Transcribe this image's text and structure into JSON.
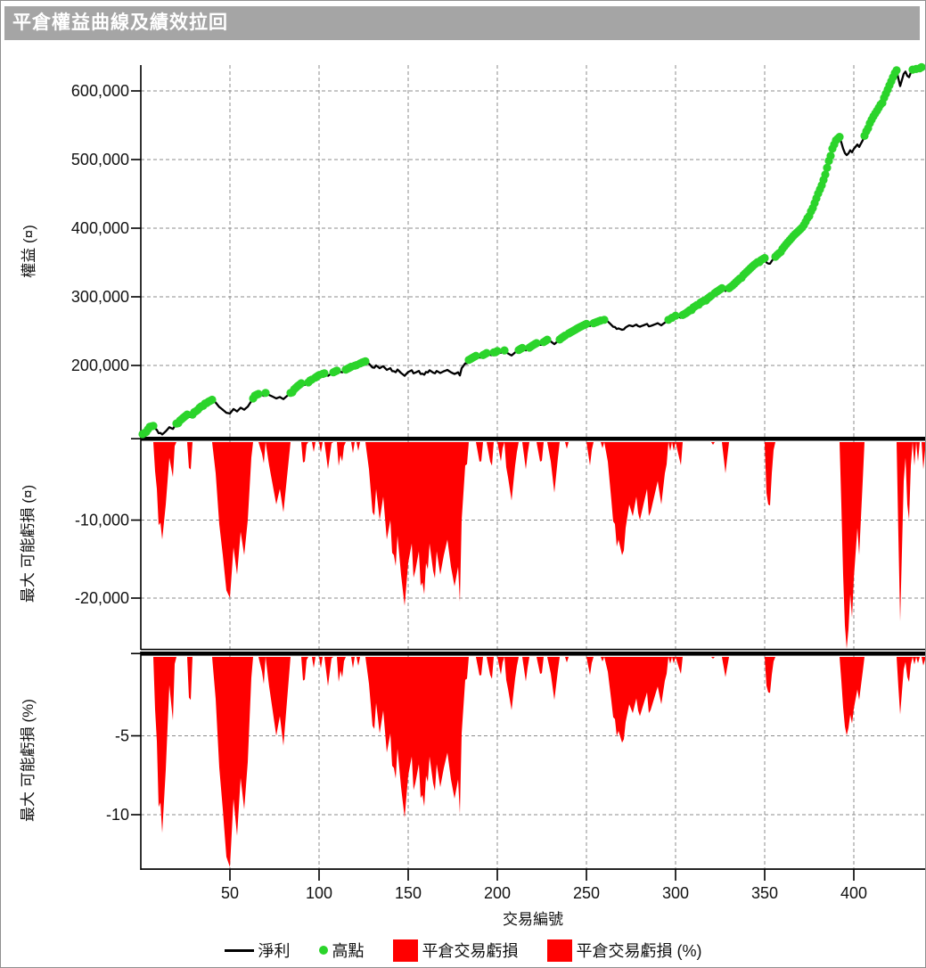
{
  "window": {
    "title": "平倉權益曲線及績效拉回"
  },
  "colors": {
    "titlebar_bg": "#a5a5a5",
    "net_profit_line": "#000000",
    "high_point_dot": "#2bd42b",
    "drawdown_area": "#ff0000",
    "gridline": "#8c8c8c",
    "axis": "#000000"
  },
  "legend": [
    {
      "label": "淨利",
      "swatch": "line",
      "color": "#000000"
    },
    {
      "label": "高點",
      "swatch": "dot",
      "color": "#2bd42b"
    },
    {
      "label": "平倉交易虧損",
      "swatch": "rect",
      "color": "#ff0000"
    },
    {
      "label": "平倉交易虧損 (%)",
      "swatch": "rect",
      "color": "#ff0000"
    }
  ],
  "chart_data": {
    "type": "line",
    "description": "Three vertically-stacked linked panels: closed-trade equity curve (black line) with green dots at new equity highs; red area of max adverse drawdown in currency; red area of max adverse drawdown in percent.",
    "xlabel": "交易編號",
    "x_range": [
      1,
      440
    ],
    "x_ticks": [
      {
        "v": 50,
        "label": "50"
      },
      {
        "v": 100,
        "label": "100"
      },
      {
        "v": 150,
        "label": "150"
      },
      {
        "v": 200,
        "label": "200"
      },
      {
        "v": 250,
        "label": "250"
      },
      {
        "v": 300,
        "label": "300"
      },
      {
        "v": 350,
        "label": "350"
      },
      {
        "v": 400,
        "label": "400"
      }
    ],
    "grid": "dashed gray, horizontal at y-ticks and vertical at x-ticks",
    "legend_position": "bottom center",
    "panels": [
      {
        "id": "equity",
        "ylabel": "權益 (¤)",
        "series_names": [
          "淨利",
          "高點"
        ],
        "ylim": [
          95000,
          640000
        ],
        "y_ticks": [
          {
            "v": 600000,
            "label": "600,000"
          },
          {
            "v": 500000,
            "label": "500,000"
          },
          {
            "v": 400000,
            "label": "400,000"
          },
          {
            "v": 300000,
            "label": "300,000"
          },
          {
            "v": 200000,
            "label": "200,000"
          }
        ]
      },
      {
        "id": "drawdown_currency",
        "ylabel": "最大 可能虧損 (¤)",
        "series_names": [
          "平倉交易虧損"
        ],
        "derived": "equity - running_max(equity)",
        "ylim": [
          -26900,
          0
        ],
        "y_ticks": [
          {
            "v": -10000,
            "label": "-10,000"
          },
          {
            "v": -20000,
            "label": "-20,000"
          }
        ]
      },
      {
        "id": "drawdown_percent",
        "ylabel": "最大 可能虧損 (%)",
        "series_names": [
          "平倉交易虧損 (%)"
        ],
        "derived": "(equity - running_max(equity)) / running_max(equity) * 100",
        "ylim": [
          -13.4,
          0
        ],
        "y_ticks": [
          {
            "v": -5,
            "label": "-5"
          },
          {
            "v": -10,
            "label": "-10"
          }
        ]
      }
    ],
    "equity_anchor_points": [
      [
        1,
        100000
      ],
      [
        3,
        103000
      ],
      [
        5,
        110500
      ],
      [
        7,
        112000
      ],
      [
        9,
        106000
      ],
      [
        12,
        99500
      ],
      [
        14,
        104000
      ],
      [
        16,
        110000
      ],
      [
        18,
        107500
      ],
      [
        20,
        115500
      ],
      [
        23,
        122000
      ],
      [
        26,
        128500
      ],
      [
        28,
        125000
      ],
      [
        30,
        132000
      ],
      [
        33,
        138500
      ],
      [
        36,
        144500
      ],
      [
        40,
        150000
      ],
      [
        42,
        146000
      ],
      [
        44,
        139500
      ],
      [
        46,
        135500
      ],
      [
        48,
        131000
      ],
      [
        50,
        130000
      ],
      [
        52,
        136500
      ],
      [
        54,
        133000
      ],
      [
        56,
        138500
      ],
      [
        58,
        135500
      ],
      [
        60,
        140000
      ],
      [
        62,
        148000
      ],
      [
        64,
        156000
      ],
      [
        66,
        158500
      ],
      [
        68,
        157000
      ],
      [
        70,
        160000
      ],
      [
        72,
        157000
      ],
      [
        74,
        154500
      ],
      [
        76,
        152000
      ],
      [
        78,
        154000
      ],
      [
        80,
        151000
      ],
      [
        82,
        155500
      ],
      [
        84,
        160000
      ],
      [
        86,
        165000
      ],
      [
        88,
        170000
      ],
      [
        90,
        174000
      ],
      [
        92,
        171500
      ],
      [
        95,
        178000
      ],
      [
        98,
        182500
      ],
      [
        100,
        186000
      ],
      [
        103,
        188500
      ],
      [
        105,
        185000
      ],
      [
        108,
        190000
      ],
      [
        110,
        192500
      ],
      [
        113,
        190000
      ],
      [
        115,
        194000
      ],
      [
        118,
        198000
      ],
      [
        121,
        200500
      ],
      [
        124,
        204000
      ],
      [
        126,
        206000
      ],
      [
        128,
        202500
      ],
      [
        130,
        197000
      ],
      [
        132,
        200000
      ],
      [
        134,
        196000
      ],
      [
        136,
        199000
      ],
      [
        138,
        193500
      ],
      [
        140,
        196000
      ],
      [
        142,
        191500
      ],
      [
        144,
        194000
      ],
      [
        146,
        189000
      ],
      [
        148,
        185000
      ],
      [
        150,
        190500
      ],
      [
        152,
        193000
      ],
      [
        154,
        189500
      ],
      [
        156,
        192000
      ],
      [
        158,
        188000
      ],
      [
        160,
        190500
      ],
      [
        162,
        193000
      ],
      [
        164,
        189500
      ],
      [
        166,
        192000
      ],
      [
        168,
        189000
      ],
      [
        170,
        191500
      ],
      [
        172,
        193500
      ],
      [
        174,
        190000
      ],
      [
        176,
        187500
      ],
      [
        178,
        190000
      ],
      [
        179,
        185500
      ],
      [
        180,
        196000
      ],
      [
        182,
        203000
      ],
      [
        184,
        208000
      ],
      [
        186,
        211000
      ],
      [
        188,
        214000
      ],
      [
        190,
        211500
      ],
      [
        192,
        215000
      ],
      [
        194,
        218000
      ],
      [
        196,
        215500
      ],
      [
        198,
        219000
      ],
      [
        200,
        221000
      ],
      [
        202,
        218500
      ],
      [
        204,
        222000
      ],
      [
        206,
        217500
      ],
      [
        208,
        214500
      ],
      [
        210,
        219000
      ],
      [
        212,
        222500
      ],
      [
        214,
        225500
      ],
      [
        216,
        222000
      ],
      [
        218,
        226000
      ],
      [
        220,
        229500
      ],
      [
        222,
        232500
      ],
      [
        224,
        230000
      ],
      [
        226,
        234000
      ],
      [
        228,
        237500
      ],
      [
        230,
        235000
      ],
      [
        232,
        231000
      ],
      [
        234,
        235500
      ],
      [
        236,
        240000
      ],
      [
        238,
        243500
      ],
      [
        240,
        246500
      ],
      [
        242,
        249500
      ],
      [
        244,
        252500
      ],
      [
        246,
        255500
      ],
      [
        248,
        258000
      ],
      [
        250,
        260500
      ],
      [
        252,
        257500
      ],
      [
        254,
        261500
      ],
      [
        256,
        263500
      ],
      [
        258,
        265500
      ],
      [
        260,
        266500
      ],
      [
        262,
        264000
      ],
      [
        264,
        259000
      ],
      [
        266,
        256000
      ],
      [
        268,
        254000
      ],
      [
        270,
        252000
      ],
      [
        272,
        255500
      ],
      [
        274,
        258500
      ],
      [
        276,
        257000
      ],
      [
        278,
        259500
      ],
      [
        280,
        256500
      ],
      [
        282,
        258500
      ],
      [
        284,
        260500
      ],
      [
        286,
        257500
      ],
      [
        288,
        259500
      ],
      [
        290,
        261500
      ],
      [
        292,
        258500
      ],
      [
        294,
        262500
      ],
      [
        296,
        266500
      ],
      [
        298,
        269500
      ],
      [
        300,
        272500
      ],
      [
        302,
        270500
      ],
      [
        304,
        273500
      ],
      [
        306,
        276500
      ],
      [
        308,
        280500
      ],
      [
        310,
        284500
      ],
      [
        312,
        288000
      ],
      [
        314,
        291500
      ],
      [
        316,
        294500
      ],
      [
        318,
        297500
      ],
      [
        320,
        301500
      ],
      [
        322,
        305500
      ],
      [
        324,
        309000
      ],
      [
        326,
        312500
      ],
      [
        328,
        308500
      ],
      [
        330,
        312500
      ],
      [
        332,
        316500
      ],
      [
        334,
        321500
      ],
      [
        336,
        326500
      ],
      [
        338,
        331500
      ],
      [
        340,
        336500
      ],
      [
        342,
        341500
      ],
      [
        344,
        346500
      ],
      [
        346,
        350500
      ],
      [
        348,
        353500
      ],
      [
        350,
        356500
      ],
      [
        352,
        348500
      ],
      [
        354,
        352500
      ],
      [
        356,
        358500
      ],
      [
        358,
        363500
      ],
      [
        360,
        370000
      ],
      [
        362,
        376500
      ],
      [
        364,
        382500
      ],
      [
        366,
        388500
      ],
      [
        368,
        393500
      ],
      [
        370,
        398500
      ],
      [
        372,
        404500
      ],
      [
        374,
        414500
      ],
      [
        376,
        424500
      ],
      [
        378,
        436500
      ],
      [
        380,
        450500
      ],
      [
        382,
        462500
      ],
      [
        384,
        478000
      ],
      [
        386,
        498000
      ],
      [
        388,
        516000
      ],
      [
        390,
        528000
      ],
      [
        392,
        533000
      ],
      [
        393,
        525000
      ],
      [
        394,
        516000
      ],
      [
        395,
        509500
      ],
      [
        396,
        506500
      ],
      [
        397,
        509000
      ],
      [
        398,
        513500
      ],
      [
        399,
        510500
      ],
      [
        400,
        515500
      ],
      [
        402,
        522000
      ],
      [
        403,
        518500
      ],
      [
        405,
        528000
      ],
      [
        407,
        541000
      ],
      [
        409,
        553000
      ],
      [
        411,
        563000
      ],
      [
        413,
        571000
      ],
      [
        415,
        580000
      ],
      [
        417,
        590000
      ],
      [
        419,
        602000
      ],
      [
        421,
        614000
      ],
      [
        422,
        620000
      ],
      [
        423,
        626000
      ],
      [
        424,
        630000
      ],
      [
        425,
        618000
      ],
      [
        426,
        607000
      ],
      [
        427,
        616000
      ],
      [
        428,
        625000
      ],
      [
        429,
        628000
      ],
      [
        430,
        622000
      ],
      [
        431,
        620000
      ],
      [
        432,
        627000
      ],
      [
        433,
        631000
      ],
      [
        434,
        628000
      ],
      [
        435,
        632000
      ],
      [
        436,
        629500
      ],
      [
        437,
        633000
      ],
      [
        438,
        634500
      ],
      [
        439,
        631000
      ],
      [
        440,
        633500
      ]
    ]
  }
}
